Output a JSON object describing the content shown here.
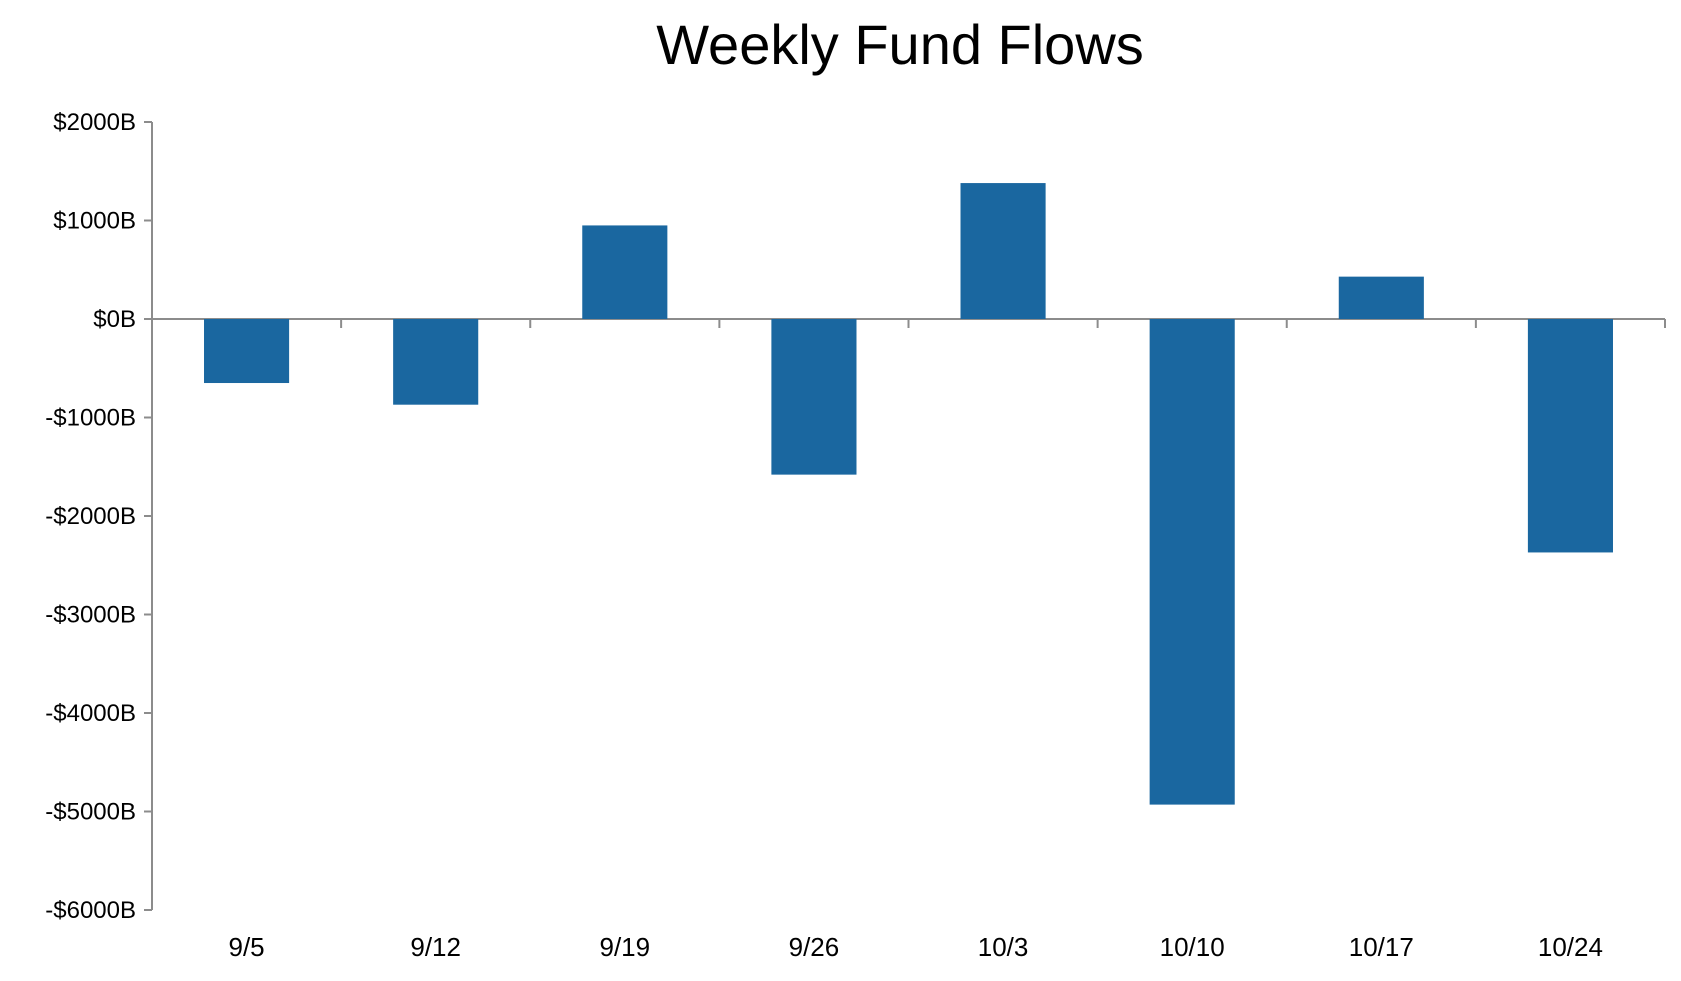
{
  "chart_data": {
    "type": "bar",
    "title": "Weekly Fund Flows",
    "xlabel": "",
    "ylabel": "",
    "categories": [
      "9/5",
      "9/12",
      "9/19",
      "9/26",
      "10/3",
      "10/10",
      "10/17",
      "10/24"
    ],
    "values": [
      -650,
      -870,
      950,
      -1580,
      1380,
      -4930,
      430,
      -2370
    ],
    "ylim": [
      -6000,
      2000
    ],
    "yticks": [
      2000,
      1000,
      0,
      -1000,
      -2000,
      -3000,
      -4000,
      -5000,
      -6000
    ],
    "ytick_labels": [
      "$2000B",
      "$1000B",
      "$0B",
      "-$1000B",
      "-$2000B",
      "-$3000B",
      "-$4000B",
      "-$5000B",
      "-$6000B"
    ],
    "bar_color": "#1a67a0",
    "axis_color": "#8c8c8c",
    "grid": false,
    "legend": "none"
  }
}
